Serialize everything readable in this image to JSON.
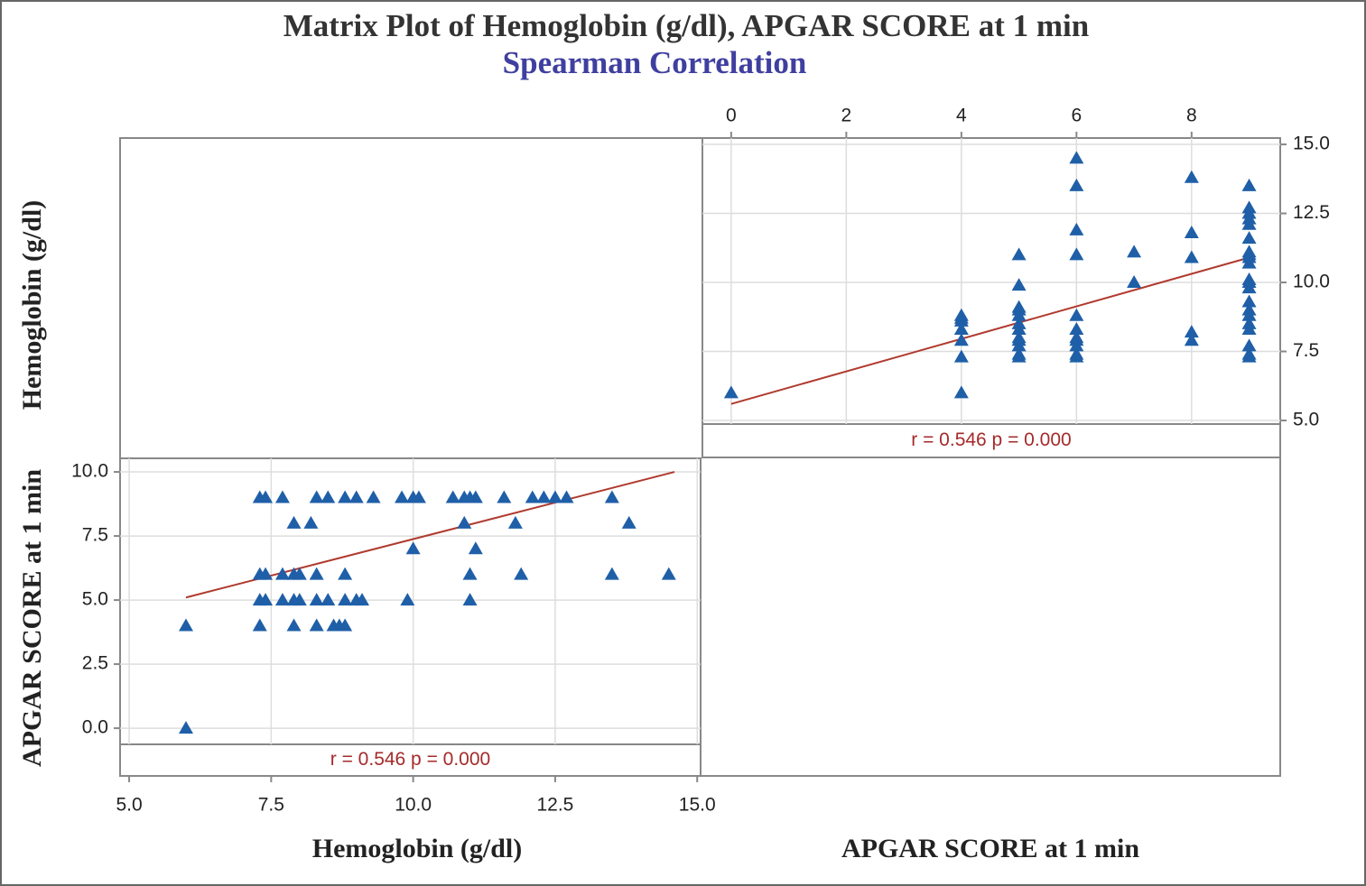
{
  "title": "Matrix Plot of Hemoglobin (g/dl), APGAR SCORE at 1 min",
  "subtitle": "Spearman Correlation",
  "chart_data": [
    {
      "type": "scatter",
      "x_label": "APGAR SCORE at 1 min",
      "y_label": "Hemoglobin (g/dl)",
      "x": [
        9,
        9,
        9,
        9,
        9,
        9,
        9,
        9,
        9,
        9,
        9,
        9,
        9,
        9,
        9,
        9,
        9,
        9,
        9,
        9,
        9,
        8,
        8,
        8,
        8,
        8,
        7,
        7,
        6,
        6,
        6,
        6,
        6,
        6,
        6,
        6,
        6,
        6,
        6,
        5,
        5,
        5,
        5,
        5,
        5,
        5,
        5,
        5,
        5,
        5,
        5,
        4,
        4,
        4,
        4,
        4,
        4,
        4,
        0
      ],
      "y": [
        7.3,
        7.4,
        7.7,
        8.3,
        8.5,
        8.8,
        9.0,
        9.3,
        9.8,
        10.0,
        10.1,
        10.7,
        10.9,
        11.0,
        11.1,
        11.6,
        12.1,
        12.3,
        12.5,
        12.7,
        13.5,
        7.9,
        8.2,
        10.9,
        11.8,
        13.8,
        10.0,
        11.1,
        7.3,
        7.4,
        7.7,
        7.9,
        8.0,
        8.3,
        8.8,
        11.0,
        11.9,
        13.5,
        14.5,
        7.3,
        7.4,
        7.7,
        7.9,
        8.0,
        8.3,
        8.5,
        8.8,
        9.0,
        9.1,
        9.9,
        11.0,
        6.0,
        7.3,
        7.9,
        8.3,
        8.6,
        8.7,
        8.8,
        6.0
      ],
      "color": "#1f5fa8",
      "marker": "triangle",
      "trendline": {
        "x": [
          0,
          9
        ],
        "y": [
          5.6,
          10.9
        ],
        "color": "#b03a2e"
      },
      "annotation": "r = 0.546  p = 0.000",
      "xlim": [
        -0.5,
        9.54
      ],
      "ylim": [
        4.87,
        15.23
      ],
      "xticks": [
        0,
        2,
        4,
        6,
        8
      ],
      "yticks": [
        {
          "value": 5,
          "label": "5.0"
        },
        7.5,
        {
          "value": 10,
          "label": "10.0"
        },
        12.5,
        {
          "value": 15,
          "label": "15.0"
        }
      ],
      "grid": true
    },
    {
      "type": "scatter",
      "x_label": "Hemoglobin (g/dl)",
      "y_label": "APGAR SCORE at 1 min",
      "x": [
        7.3,
        7.4,
        7.7,
        8.3,
        8.5,
        8.8,
        9.0,
        9.3,
        9.8,
        10.0,
        10.1,
        10.7,
        10.9,
        11.0,
        11.1,
        11.6,
        12.1,
        12.3,
        12.5,
        12.7,
        13.5,
        7.9,
        8.2,
        10.9,
        11.8,
        13.8,
        10.0,
        11.1,
        7.3,
        7.4,
        7.7,
        7.9,
        8.0,
        8.3,
        8.8,
        11.0,
        11.9,
        13.5,
        14.5,
        7.3,
        7.4,
        7.7,
        7.9,
        8.0,
        8.3,
        8.5,
        8.8,
        9.0,
        9.1,
        9.9,
        11.0,
        6.0,
        7.3,
        7.9,
        8.3,
        8.6,
        8.7,
        8.8,
        6.0
      ],
      "y": [
        9,
        9,
        9,
        9,
        9,
        9,
        9,
        9,
        9,
        9,
        9,
        9,
        9,
        9,
        9,
        9,
        9,
        9,
        9,
        9,
        9,
        8,
        8,
        8,
        8,
        8,
        7,
        7,
        6,
        6,
        6,
        6,
        6,
        6,
        6,
        6,
        6,
        6,
        6,
        5,
        5,
        5,
        5,
        5,
        5,
        5,
        5,
        5,
        5,
        5,
        5,
        4,
        4,
        4,
        4,
        4,
        4,
        4,
        0
      ],
      "color": "#1f5fa8",
      "marker": "triangle",
      "trendline": {
        "x": [
          6.0,
          14.6
        ],
        "y": [
          5.1,
          10.0
        ],
        "color": "#b03a2e"
      },
      "annotation": "r = 0.546  p = 0.000",
      "xlim": [
        4.84,
        15.06
      ],
      "ylim": [
        -0.63,
        10.53
      ],
      "xticks": [
        {
          "value": 5,
          "label": "5.0"
        },
        7.5,
        {
          "value": 10,
          "label": "10.0"
        },
        12.5,
        {
          "value": 15,
          "label": "15.0"
        }
      ],
      "yticks": [
        {
          "value": 0,
          "label": "0.0"
        },
        2.5,
        {
          "value": 5,
          "label": "5.0"
        },
        7.5,
        {
          "value": 10,
          "label": "10.0"
        }
      ],
      "grid": true
    }
  ]
}
